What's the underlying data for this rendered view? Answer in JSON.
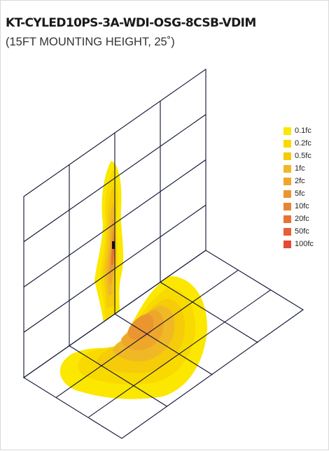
{
  "header": {
    "title": "KT-CYLED10PS-3A-WDI-OSG-8CSB-VDIM",
    "subtitle": "(15FT MOUNTING HEIGHT, 25˚)"
  },
  "legend": [
    {
      "label": "0.1fc",
      "color": "#fbe700"
    },
    {
      "label": "0.2fc",
      "color": "#f8da00"
    },
    {
      "label": "0.5fc",
      "color": "#f5cb0a"
    },
    {
      "label": "1fc",
      "color": "#f1b825"
    },
    {
      "label": "2fc",
      "color": "#eea72b"
    },
    {
      "label": "5fc",
      "color": "#eb9530"
    },
    {
      "label": "10fc",
      "color": "#e98434"
    },
    {
      "label": "20fc",
      "color": "#e77236"
    },
    {
      "label": "50fc",
      "color": "#e66037"
    },
    {
      "label": "100fc",
      "color": "#e54a36"
    }
  ],
  "colors": {
    "grid_line": "#0d1230",
    "card_border": "#d9d9d9",
    "hotspot": "#1a0a05"
  }
}
